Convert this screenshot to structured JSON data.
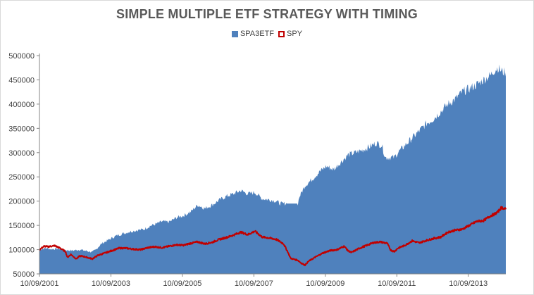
{
  "chart_data": {
    "type": "area",
    "title": "SIMPLE MULTIPLE ETF STRATEGY WITH TIMING",
    "xlabel": "",
    "ylabel": "",
    "ylim": [
      50000,
      500000
    ],
    "yticks": [
      50000,
      100000,
      150000,
      200000,
      250000,
      300000,
      350000,
      400000,
      450000,
      500000
    ],
    "xticks": [
      "10/09/2001",
      "10/09/2003",
      "10/09/2005",
      "10/09/2007",
      "10/09/2009",
      "10/09/2011",
      "10/09/2013"
    ],
    "x_range": [
      2001.77,
      2014.82
    ],
    "legend_position": "top-center",
    "grid": false,
    "series": [
      {
        "name": "SPA3ETF",
        "kind": "area",
        "color": "#4f81bd",
        "points": [
          [
            2001.77,
            100000
          ],
          [
            2001.95,
            103000
          ],
          [
            2002.1,
            101000
          ],
          [
            2002.3,
            102000
          ],
          [
            2002.5,
            99000
          ],
          [
            2002.7,
            98000
          ],
          [
            2002.9,
            100000
          ],
          [
            2003.1,
            97000
          ],
          [
            2003.25,
            95000
          ],
          [
            2003.35,
            100000
          ],
          [
            2003.5,
            112000
          ],
          [
            2003.7,
            120000
          ],
          [
            2003.9,
            128000
          ],
          [
            2004.1,
            133000
          ],
          [
            2004.3,
            137000
          ],
          [
            2004.5,
            140000
          ],
          [
            2004.7,
            142000
          ],
          [
            2004.9,
            150000
          ],
          [
            2005.0,
            152000
          ],
          [
            2005.2,
            158000
          ],
          [
            2005.4,
            157000
          ],
          [
            2005.6,
            166000
          ],
          [
            2005.8,
            170000
          ],
          [
            2006.0,
            178000
          ],
          [
            2006.2,
            192000
          ],
          [
            2006.4,
            185000
          ],
          [
            2006.6,
            192000
          ],
          [
            2006.8,
            202000
          ],
          [
            2007.0,
            210000
          ],
          [
            2007.2,
            215000
          ],
          [
            2007.4,
            222000
          ],
          [
            2007.6,
            215000
          ],
          [
            2007.8,
            218000
          ],
          [
            2008.0,
            205000
          ],
          [
            2008.2,
            203000
          ],
          [
            2008.4,
            200000
          ],
          [
            2008.5,
            195000
          ],
          [
            2008.7,
            195000
          ],
          [
            2008.9,
            195000
          ],
          [
            2009.0,
            195000
          ],
          [
            2009.05,
            210000
          ],
          [
            2009.2,
            232000
          ],
          [
            2009.4,
            245000
          ],
          [
            2009.6,
            260000
          ],
          [
            2009.8,
            272000
          ],
          [
            2010.0,
            265000
          ],
          [
            2010.2,
            280000
          ],
          [
            2010.4,
            295000
          ],
          [
            2010.6,
            300000
          ],
          [
            2010.8,
            305000
          ],
          [
            2011.0,
            312000
          ],
          [
            2011.2,
            320000
          ],
          [
            2011.35,
            315000
          ],
          [
            2011.45,
            290000
          ],
          [
            2011.7,
            290000
          ],
          [
            2011.8,
            300000
          ],
          [
            2012.0,
            315000
          ],
          [
            2012.2,
            330000
          ],
          [
            2012.4,
            345000
          ],
          [
            2012.6,
            360000
          ],
          [
            2012.8,
            370000
          ],
          [
            2013.0,
            385000
          ],
          [
            2013.2,
            400000
          ],
          [
            2013.4,
            410000
          ],
          [
            2013.6,
            425000
          ],
          [
            2013.8,
            432000
          ],
          [
            2014.0,
            440000
          ],
          [
            2014.2,
            450000
          ],
          [
            2014.4,
            460000
          ],
          [
            2014.5,
            470000
          ],
          [
            2014.6,
            475000
          ],
          [
            2014.7,
            468000
          ],
          [
            2014.82,
            465000
          ]
        ]
      },
      {
        "name": "SPY",
        "kind": "line",
        "color": "#c00000",
        "points": [
          [
            2001.77,
            100000
          ],
          [
            2001.9,
            107000
          ],
          [
            2002.0,
            106000
          ],
          [
            2002.2,
            108000
          ],
          [
            2002.35,
            103000
          ],
          [
            2002.5,
            96000
          ],
          [
            2002.55,
            84000
          ],
          [
            2002.65,
            90000
          ],
          [
            2002.8,
            81000
          ],
          [
            2002.9,
            87000
          ],
          [
            2003.0,
            86000
          ],
          [
            2003.15,
            83000
          ],
          [
            2003.25,
            81000
          ],
          [
            2003.4,
            88000
          ],
          [
            2003.6,
            93000
          ],
          [
            2003.8,
            98000
          ],
          [
            2004.0,
            103000
          ],
          [
            2004.2,
            103000
          ],
          [
            2004.4,
            101000
          ],
          [
            2004.6,
            100000
          ],
          [
            2004.8,
            104000
          ],
          [
            2005.0,
            106000
          ],
          [
            2005.2,
            104000
          ],
          [
            2005.4,
            107000
          ],
          [
            2005.6,
            110000
          ],
          [
            2005.8,
            109000
          ],
          [
            2006.0,
            113000
          ],
          [
            2006.2,
            116000
          ],
          [
            2006.4,
            112000
          ],
          [
            2006.6,
            115000
          ],
          [
            2006.8,
            121000
          ],
          [
            2007.0,
            125000
          ],
          [
            2007.2,
            130000
          ],
          [
            2007.4,
            136000
          ],
          [
            2007.6,
            131000
          ],
          [
            2007.8,
            138000
          ],
          [
            2008.0,
            126000
          ],
          [
            2008.2,
            124000
          ],
          [
            2008.4,
            121000
          ],
          [
            2008.6,
            112000
          ],
          [
            2008.7,
            98000
          ],
          [
            2008.8,
            82000
          ],
          [
            2008.9,
            80000
          ],
          [
            2009.0,
            78000
          ],
          [
            2009.1,
            72000
          ],
          [
            2009.2,
            68000
          ],
          [
            2009.3,
            76000
          ],
          [
            2009.5,
            85000
          ],
          [
            2009.7,
            93000
          ],
          [
            2009.9,
            98000
          ],
          [
            2010.1,
            100000
          ],
          [
            2010.3,
            107000
          ],
          [
            2010.4,
            98000
          ],
          [
            2010.5,
            94000
          ],
          [
            2010.7,
            102000
          ],
          [
            2010.9,
            108000
          ],
          [
            2011.1,
            114000
          ],
          [
            2011.3,
            116000
          ],
          [
            2011.5,
            113000
          ],
          [
            2011.6,
            99000
          ],
          [
            2011.7,
            96000
          ],
          [
            2011.8,
            103000
          ],
          [
            2012.0,
            109000
          ],
          [
            2012.2,
            118000
          ],
          [
            2012.4,
            114000
          ],
          [
            2012.6,
            119000
          ],
          [
            2012.8,
            123000
          ],
          [
            2013.0,
            126000
          ],
          [
            2013.2,
            136000
          ],
          [
            2013.4,
            140000
          ],
          [
            2013.6,
            142000
          ],
          [
            2013.8,
            150000
          ],
          [
            2014.0,
            158000
          ],
          [
            2014.2,
            160000
          ],
          [
            2014.4,
            170000
          ],
          [
            2014.5,
            173000
          ],
          [
            2014.6,
            178000
          ],
          [
            2014.7,
            187000
          ],
          [
            2014.82,
            183000
          ]
        ]
      }
    ]
  }
}
